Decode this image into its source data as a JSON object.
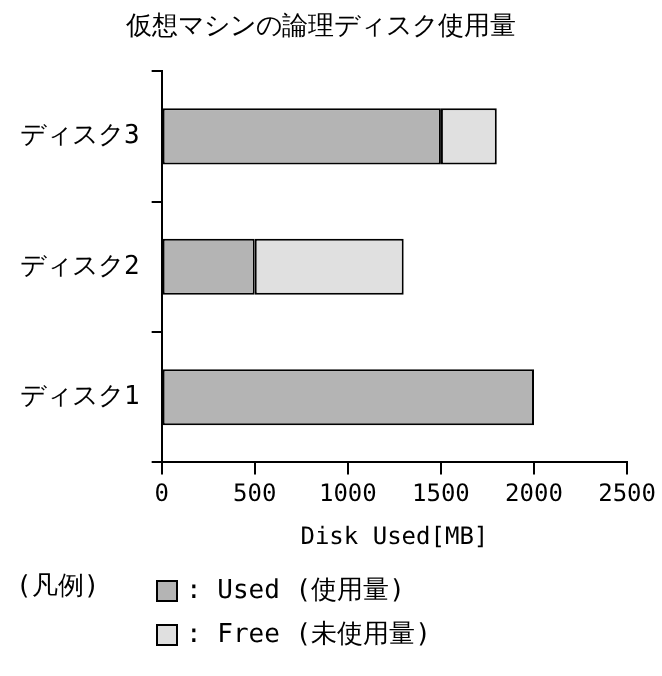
{
  "chart_data": {
    "type": "bar",
    "orientation": "horizontal",
    "stacked": true,
    "title": "仮想マシンの論理ディスク使用量",
    "xlabel": "Disk Used[MB]",
    "legend_title": "(凡例)",
    "categories": [
      "ディスク3",
      "ディスク2",
      "ディスク1"
    ],
    "series": [
      {
        "name": ": Used (使用量)",
        "color": "#b4b4b4",
        "values": [
          1500,
          500,
          2000
        ]
      },
      {
        "name": ": Free (未使用量)",
        "color": "#e0e0e0",
        "values": [
          300,
          800,
          0
        ]
      }
    ],
    "xlim": [
      0,
      2500
    ],
    "xticks": [
      0,
      500,
      1000,
      1500,
      2000,
      2500
    ],
    "grid": false,
    "legend": "bottom"
  }
}
